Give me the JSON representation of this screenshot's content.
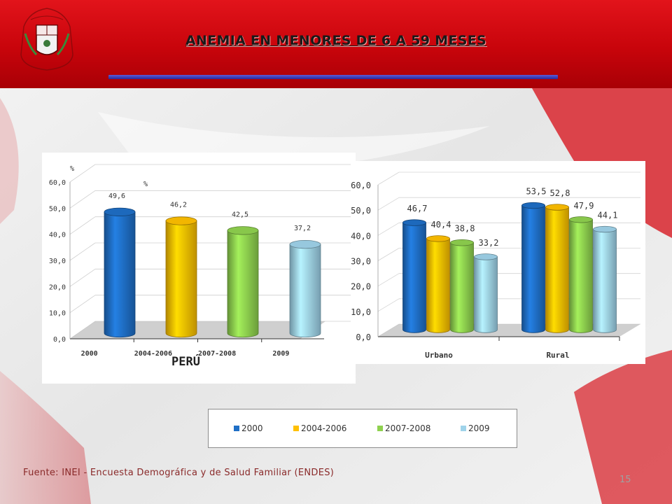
{
  "header": {
    "title": "ANEMIA EN MENORES DE 6 A 59 MESES"
  },
  "colors": {
    "header_red": "#d40a10",
    "series_2000": "#1f6fc6",
    "series_2004_2006": "#ffc000",
    "series_2007_2008": "#8fd14f",
    "series_2009": "#9fd3ea"
  },
  "chart_data": [
    {
      "type": "bar",
      "title": "PERÚ",
      "ylabel": "%",
      "ylim": [
        0,
        60
      ],
      "yticks": [
        "0,0",
        "10,0",
        "20,0",
        "30,0",
        "40,0",
        "50,0",
        "60,0"
      ],
      "categories": [
        "2000",
        "2004-2006",
        "2007-2008",
        "2009"
      ],
      "values": [
        49.6,
        46.2,
        42.5,
        37.2
      ],
      "value_labels": [
        "49,6",
        "46,2",
        "42,5",
        "37,2"
      ],
      "extra_label": "%",
      "grid": true
    },
    {
      "type": "bar",
      "ylim": [
        0,
        60
      ],
      "yticks": [
        "0,0",
        "10,0",
        "20,0",
        "30,0",
        "40,0",
        "50,0",
        "60,0"
      ],
      "categories": [
        "Urbano",
        "Rural"
      ],
      "series": [
        {
          "name": "2000",
          "values": [
            46.7,
            53.5
          ],
          "labels": [
            "46,7",
            "53,5"
          ]
        },
        {
          "name": "2004-2006",
          "values": [
            40.4,
            52.8
          ],
          "labels": [
            "40,4",
            "52,8"
          ]
        },
        {
          "name": "2007-2008",
          "values": [
            38.8,
            47.9
          ],
          "labels": [
            "38,8",
            "47,9"
          ]
        },
        {
          "name": "2009",
          "values": [
            33.2,
            44.1
          ],
          "labels": [
            "33,2",
            "44,1"
          ]
        }
      ],
      "grid": true,
      "legend": "bottom"
    }
  ],
  "legend": {
    "items": [
      {
        "label": "2000"
      },
      {
        "label": "2004-2006"
      },
      {
        "label": "2007-2008"
      },
      {
        "label": "2009"
      }
    ]
  },
  "footer": {
    "source": "Fuente: INEI - Encuesta Demográfica y de Salud Familiar (ENDES)",
    "page_number": "15"
  }
}
